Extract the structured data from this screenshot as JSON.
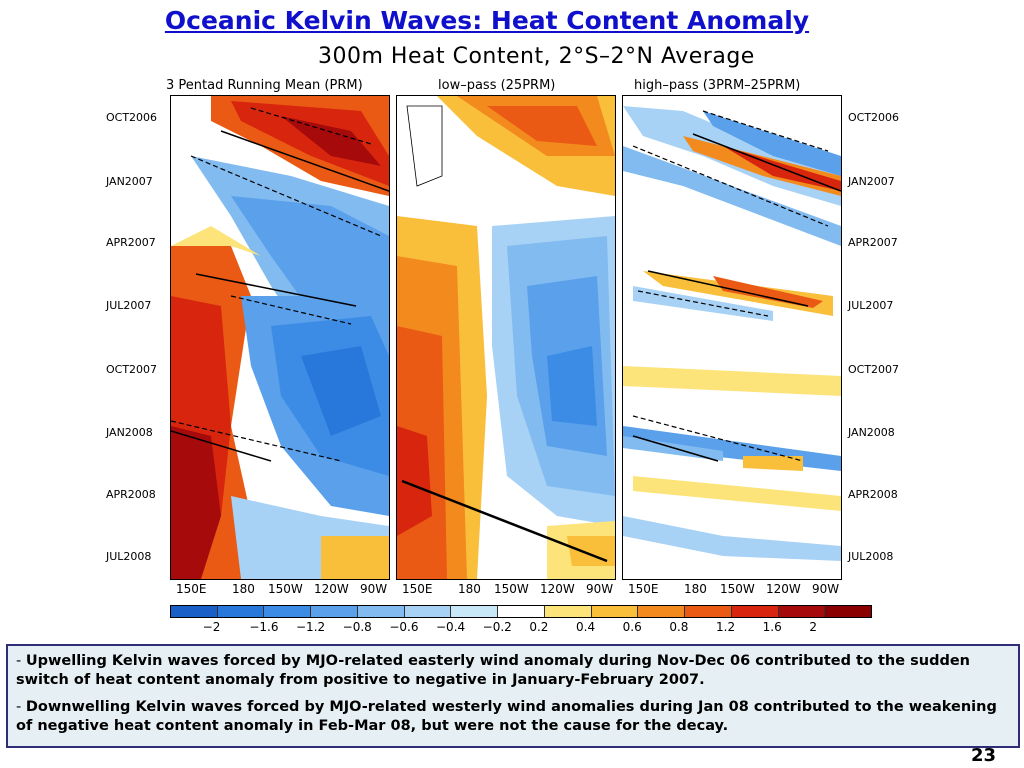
{
  "slide": {
    "title": "Oceanic Kelvin Waves: Heat Content Anomaly",
    "page_number": "23"
  },
  "chart_data": {
    "type": "heatmap",
    "title": "300m Heat Content, 2°S–2°N Average",
    "panels": [
      {
        "title": "3 Pentad Running Mean (PRM)"
      },
      {
        "title": "low–pass (25PRM)"
      },
      {
        "title": "high–pass (3PRM–25PRM)"
      }
    ],
    "x_ticks": [
      "150E",
      "180",
      "150W",
      "120W",
      "90W"
    ],
    "y_ticks": [
      "OCT2006",
      "JAN2007",
      "APR2007",
      "JUL2007",
      "OCT2007",
      "JAN2008",
      "APR2008",
      "JUL2008"
    ],
    "colorbar": {
      "levels": [
        "−2",
        "−1.6",
        "−1.2",
        "−0.8",
        "−0.6",
        "−0.4",
        "−0.2",
        "0.2",
        "0.4",
        "0.6",
        "0.8",
        "1.2",
        "1.6",
        "2"
      ],
      "colors": [
        "#1a5fc8",
        "#2878dc",
        "#3c8ce6",
        "#5aa0eb",
        "#82bbf0",
        "#a8d2f5",
        "#c8e8f8",
        "#ffffff",
        "#fde47a",
        "#f9be3a",
        "#f28a1e",
        "#ea5a14",
        "#d8260e",
        "#a60a0a",
        "#8a0000"
      ]
    }
  },
  "notes": [
    {
      "dash": "-",
      "text": "Upwelling Kelvin waves forced by MJO-related easterly wind anomaly during Nov-Dec 06 contributed to the sudden switch of heat content anomaly from positive to negative in January-February 2007."
    },
    {
      "dash": "-",
      "text": "Downwelling Kelvin waves forced by MJO-related westerly wind anomalies during Jan 08 contributed to the weakening of negative heat content anomaly in Feb-Mar 08, but were not the cause for the decay."
    }
  ]
}
